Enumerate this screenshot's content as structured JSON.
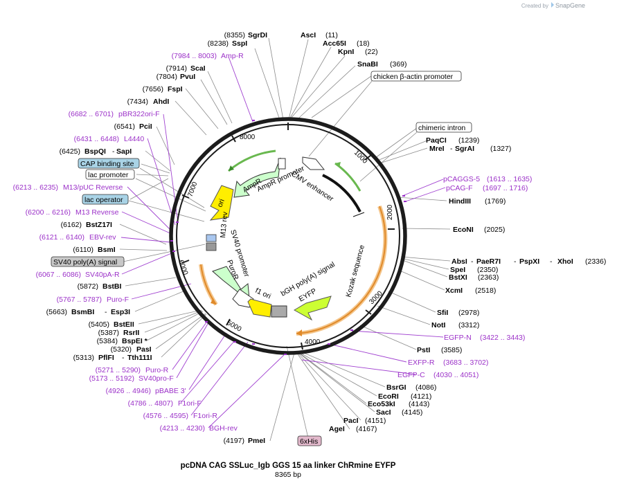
{
  "brand": {
    "prefix": "Created by",
    "name": "SnapGene"
  },
  "plasmid": {
    "name": "pcDNA CAG SSLuc_Igb GGS 15 aa linker ChRmine EYFP",
    "length": 8365,
    "length_label": "8365 bp"
  },
  "ticks": [
    "1000",
    "2000",
    "3000",
    "4000",
    "5000",
    "6000",
    "7000",
    "8000"
  ],
  "sites": [
    {
      "pos": "(8355)",
      "name": "SgrDI"
    },
    {
      "pos": "(8238)",
      "name": "SspI"
    },
    {
      "pos": "(11)",
      "name": "AscI"
    },
    {
      "pos": "(18)",
      "name": "Acc65I"
    },
    {
      "pos": "(22)",
      "name": "KpnI"
    },
    {
      "pos": "(369)",
      "name": "SnaBI"
    },
    {
      "pos": "(7914)",
      "name": "ScaI"
    },
    {
      "pos": "(7804)",
      "name": "PvuI"
    },
    {
      "pos": "(7656)",
      "name": "FspI"
    },
    {
      "pos": "(7434)",
      "name": "AhdI"
    },
    {
      "pos": "(6541)",
      "name": "PciI"
    },
    {
      "pos": "(6425)",
      "name": "BspQI",
      "name2": "SapI"
    },
    {
      "pos": "(1239)",
      "name": "PaqCI"
    },
    {
      "pos": "(1327)",
      "name": "MreI",
      "name2": "SgrAI"
    },
    {
      "pos": "(1769)",
      "name": "HindIII"
    },
    {
      "pos": "(2025)",
      "name": "EcoNI"
    },
    {
      "pos": "(2336)",
      "name": "AbsI",
      "name2": "PaeR7I",
      "name3": "PspXI",
      "name4": "XhoI"
    },
    {
      "pos": "(2350)",
      "name": "SpeI"
    },
    {
      "pos": "(2363)",
      "name": "BstXI"
    },
    {
      "pos": "(2518)",
      "name": "XcmI"
    },
    {
      "pos": "(2978)",
      "name": "SfiI"
    },
    {
      "pos": "(3312)",
      "name": "NotI"
    },
    {
      "pos": "(3585)",
      "name": "PstI"
    },
    {
      "pos": "(4086)",
      "name": "BsrGI"
    },
    {
      "pos": "(4121)",
      "name": "EcoRI"
    },
    {
      "pos": "(4143)",
      "name": "Eco53kI"
    },
    {
      "pos": "(4145)",
      "name": "SacI"
    },
    {
      "pos": "(4151)",
      "name": "PacI"
    },
    {
      "pos": "(4167)",
      "name": "AgeI"
    },
    {
      "pos": "(4197)",
      "name": "PmeI"
    },
    {
      "pos": "(6162)",
      "name": "BstZ17I"
    },
    {
      "pos": "(6110)",
      "name": "BsmI"
    },
    {
      "pos": "(5872)",
      "name": "BstBI"
    },
    {
      "pos": "(5663)",
      "name": "BsmBI",
      "name2": "Esp3I"
    },
    {
      "pos": "(5405)",
      "name": "BstEII"
    },
    {
      "pos": "(5387)",
      "name": "RsrII"
    },
    {
      "pos": "(5384)",
      "name": "BspEI *"
    },
    {
      "pos": "(5320)",
      "name": "PasI"
    },
    {
      "pos": "(5313)",
      "name": "PflFI",
      "name2": "Tth111I"
    }
  ],
  "primers": [
    {
      "range": "(7984 .. 8003)",
      "name": "Amp-R"
    },
    {
      "range": "(6682 .. 6701)",
      "name": "pBR322ori-F"
    },
    {
      "range": "(6431 .. 6448)",
      "name": "L4440"
    },
    {
      "range": "(6213 .. 6235)",
      "name": "M13/pUC Reverse"
    },
    {
      "range": "(6200 .. 6216)",
      "name": "M13 Reverse"
    },
    {
      "range": "(6121 .. 6140)",
      "name": "EBV-rev"
    },
    {
      "range": "(6067 .. 6086)",
      "name": "SV40pA-R"
    },
    {
      "range": "(5767 .. 5787)",
      "name": "Puro-F"
    },
    {
      "range": "(5271 .. 5290)",
      "name": "Puro-R"
    },
    {
      "range": "(5173 .. 5192)",
      "name": "SV40pro-F"
    },
    {
      "range": "(4926 .. 4946)",
      "name": "pBABE 3'"
    },
    {
      "range": "(4786 .. 4807)",
      "name": "F1ori-F"
    },
    {
      "range": "(4576 .. 4595)",
      "name": "F1ori-R"
    },
    {
      "range": "(4213 .. 4230)",
      "name": "BGH-rev"
    },
    {
      "range": "(1613 .. 1635)",
      "name": "pCAGGS-5"
    },
    {
      "range": "(1697 .. 1716)",
      "name": "pCAG-F"
    },
    {
      "range": "(3422 .. 3443)",
      "name": "EGFP-N"
    },
    {
      "range": "(3683 .. 3702)",
      "name": "EXFP-R"
    },
    {
      "range": "(4030 .. 4051)",
      "name": "EGFP-C"
    }
  ],
  "boxed_features": [
    {
      "name": "chicken β-actin promoter",
      "style": "white"
    },
    {
      "name": "chimeric intron",
      "style": "white"
    },
    {
      "name": "CAP binding site",
      "style": "blue"
    },
    {
      "name": "lac promoter",
      "style": "white"
    },
    {
      "name": "lac operator",
      "style": "blue"
    },
    {
      "name": "SV40 poly(A) signal",
      "style": "gray"
    },
    {
      "name": "6xHis",
      "style": "pink"
    }
  ],
  "inner_labels": [
    "CMV enhancer",
    "AmpR promoter",
    "AmpR",
    "ori",
    "M13 rev",
    "SV40 promoter",
    "PuroR",
    "f1 ori",
    "bGH poly(A) signal",
    "EYFP",
    "Kozak sequence"
  ],
  "colors": {
    "primer": "#9b30c8",
    "backbone": "#222222",
    "ampr": "#ccffcc",
    "ori": "#ffee00",
    "eyfp": "#ccff33",
    "primer_arc": "#e8a33d",
    "site_line": "#777777"
  }
}
